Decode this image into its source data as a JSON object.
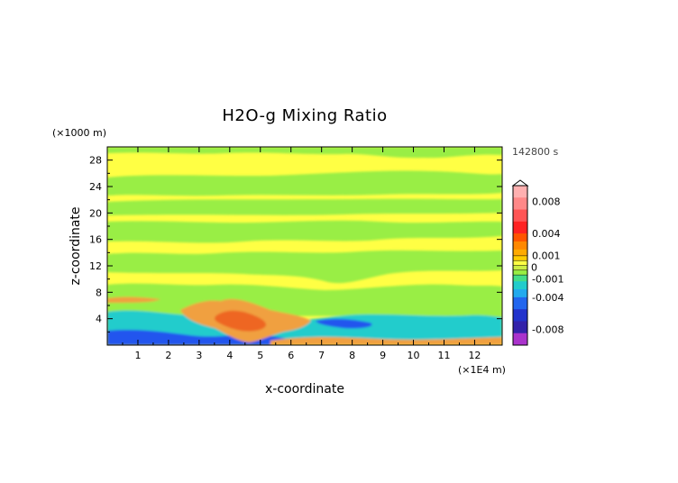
{
  "chart_data": {
    "type": "heatmap",
    "title": "H2O-g Mixing Ratio",
    "xlabel": "x-coordinate",
    "ylabel": "z-coordinate",
    "x_unit": "(×1E4 m)",
    "y_unit": "(×1000 m)",
    "time_label": "142800 s",
    "xlim": [
      0,
      12.9
    ],
    "ylim": [
      0,
      30
    ],
    "x_ticks": [
      "1",
      "2",
      "3",
      "4",
      "5",
      "6",
      "7",
      "8",
      "9",
      "10",
      "11",
      "12"
    ],
    "y_ticks": [
      "4",
      "8",
      "12",
      "16",
      "20",
      "24",
      "28"
    ],
    "colorbar": {
      "range": [
        -0.01,
        0.01
      ],
      "labels": [
        "0.008",
        "0.004",
        "0.001",
        "0",
        "-0.001",
        "-0.004",
        "-0.008"
      ],
      "label_values": [
        0.008,
        0.004,
        0.001,
        0,
        -0.001,
        -0.004,
        -0.008
      ]
    },
    "colors": {
      "near_zero_positive": "#ffff44",
      "near_zero_negative": "#99ee44",
      "moderate_positive": "#f0a040",
      "strong_positive": "#ee6622",
      "moderate_negative": "#22cccc",
      "strong_negative": "#2255ee"
    }
  }
}
